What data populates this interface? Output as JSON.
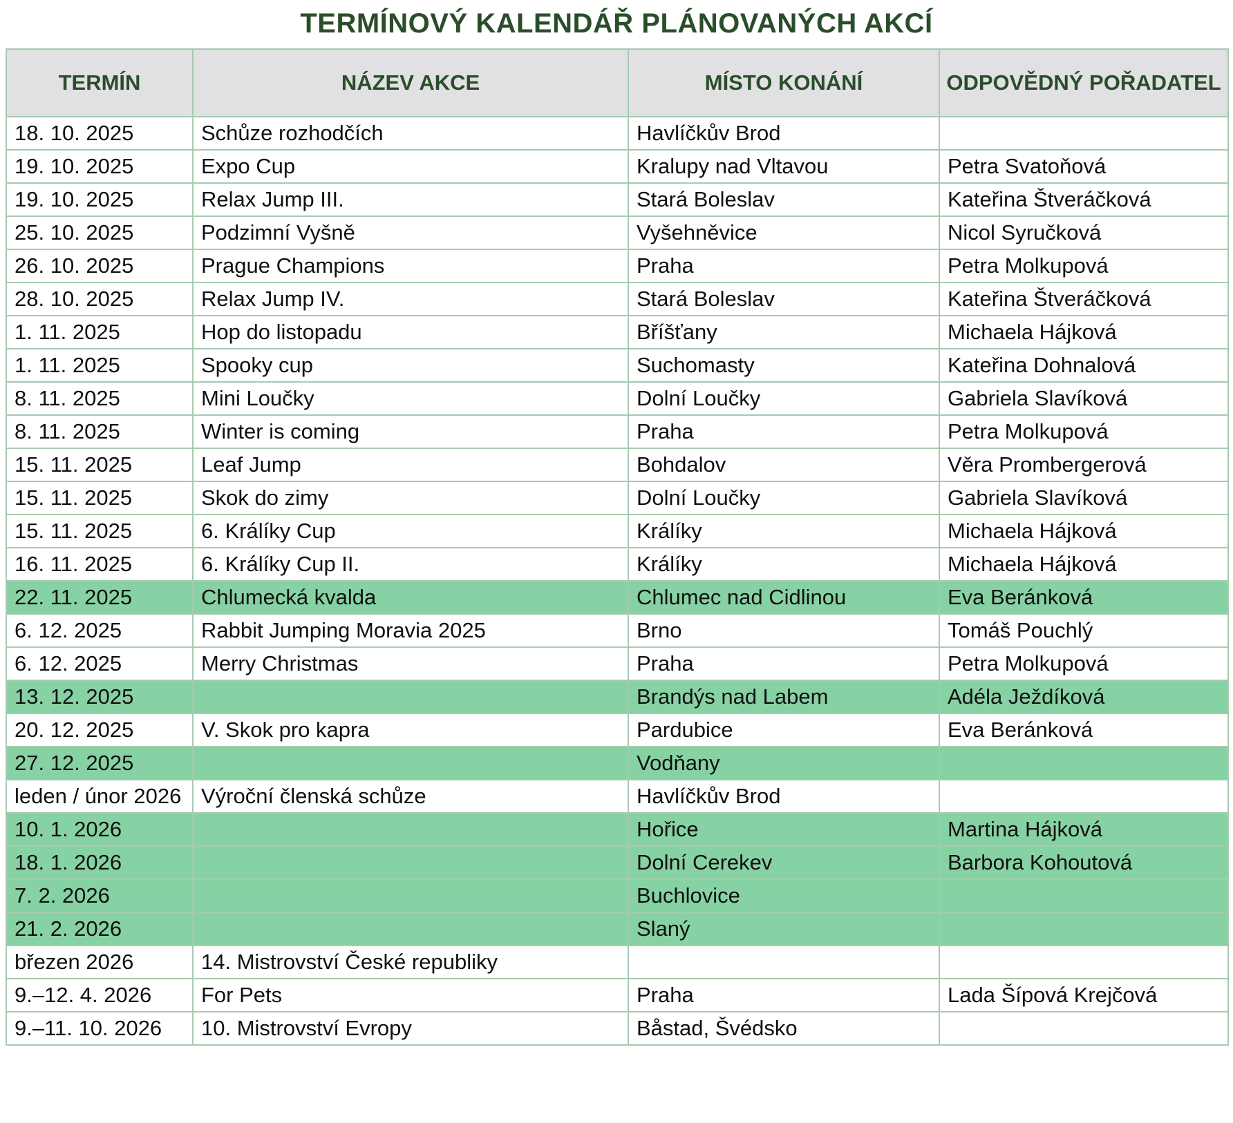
{
  "title": "TERMÍNOVÝ KALENDÁŘ PLÁNOVANÝCH AKCÍ",
  "colors": {
    "title_text": "#2a4d2a",
    "header_bg": "#e1e0e2",
    "header_text": "#2a4d2a",
    "row_highlight": "#87d2a4",
    "border": "#a6cbaf",
    "cell_text": "#101010"
  },
  "table": {
    "columns": [
      "TERMÍN",
      "NÁZEV AKCE",
      "MÍSTO KONÁNÍ",
      "ODPOVĚDNÝ POŘADATEL"
    ],
    "rows": [
      {
        "termin": "18. 10. 2025",
        "nazev": "Schůze rozhodčích",
        "misto": "Havlíčkův Brod",
        "poradatel": "",
        "highlight": false
      },
      {
        "termin": "19. 10. 2025",
        "nazev": "Expo Cup",
        "misto": "Kralupy nad Vltavou",
        "poradatel": "Petra Svatoňová",
        "highlight": false
      },
      {
        "termin": "19. 10. 2025",
        "nazev": "Relax Jump III.",
        "misto": "Stará Boleslav",
        "poradatel": "Kateřina Štveráčková",
        "highlight": false
      },
      {
        "termin": "25. 10. 2025",
        "nazev": "Podzimní Vyšně",
        "misto": "Vyšehněvice",
        "poradatel": "Nicol Syručková",
        "highlight": false
      },
      {
        "termin": "26. 10. 2025",
        "nazev": "Prague Champions",
        "misto": "Praha",
        "poradatel": "Petra Molkupová",
        "highlight": false
      },
      {
        "termin": "28. 10. 2025",
        "nazev": "Relax Jump IV.",
        "misto": "Stará Boleslav",
        "poradatel": "Kateřina Štveráčková",
        "highlight": false
      },
      {
        "termin": "1. 11. 2025",
        "nazev": "Hop do listopadu",
        "misto": "Bříšťany",
        "poradatel": "Michaela Hájková",
        "highlight": false
      },
      {
        "termin": "1. 11. 2025",
        "nazev": "Spooky cup",
        "misto": "Suchomasty",
        "poradatel": "Kateřina Dohnalová",
        "highlight": false
      },
      {
        "termin": "8. 11. 2025",
        "nazev": "Mini Loučky",
        "misto": "Dolní Loučky",
        "poradatel": "Gabriela Slavíková",
        "highlight": false
      },
      {
        "termin": "8. 11. 2025",
        "nazev": "Winter is coming",
        "misto": "Praha",
        "poradatel": "Petra Molkupová",
        "highlight": false
      },
      {
        "termin": "15. 11. 2025",
        "nazev": "Leaf Jump",
        "misto": "Bohdalov",
        "poradatel": "Věra Prombergerová",
        "highlight": false
      },
      {
        "termin": "15. 11. 2025",
        "nazev": "Skok do zimy",
        "misto": "Dolní Loučky",
        "poradatel": "Gabriela Slavíková",
        "highlight": false
      },
      {
        "termin": "15. 11. 2025",
        "nazev": "6. Králíky Cup",
        "misto": "Králíky",
        "poradatel": "Michaela Hájková",
        "highlight": false
      },
      {
        "termin": "16. 11. 2025",
        "nazev": "6. Králíky Cup II.",
        "misto": "Králíky",
        "poradatel": "Michaela Hájková",
        "highlight": false
      },
      {
        "termin": "22. 11. 2025",
        "nazev": "Chlumecká kvalda",
        "misto": "Chlumec nad Cidlinou",
        "poradatel": "Eva Beránková",
        "highlight": true
      },
      {
        "termin": "6. 12. 2025",
        "nazev": "Rabbit Jumping Moravia 2025",
        "misto": "Brno",
        "poradatel": "Tomáš Pouchlý",
        "highlight": false
      },
      {
        "termin": "6. 12. 2025",
        "nazev": "Merry Christmas",
        "misto": "Praha",
        "poradatel": "Petra Molkupová",
        "highlight": false
      },
      {
        "termin": "13. 12. 2025",
        "nazev": "",
        "misto": "Brandýs nad Labem",
        "poradatel": "Adéla Ježdíková",
        "highlight": true
      },
      {
        "termin": "20. 12. 2025",
        "nazev": "V. Skok pro kapra",
        "misto": "Pardubice",
        "poradatel": "Eva Beránková",
        "highlight": false
      },
      {
        "termin": "27. 12. 2025",
        "nazev": "",
        "misto": "Vodňany",
        "poradatel": "",
        "highlight": true
      },
      {
        "termin": "leden / únor 2026",
        "nazev": "Výroční členská schůze",
        "misto": "Havlíčkův Brod",
        "poradatel": "",
        "highlight": false
      },
      {
        "termin": "10. 1. 2026",
        "nazev": "",
        "misto": "Hořice",
        "poradatel": "Martina Hájková",
        "highlight": true
      },
      {
        "termin": "18. 1. 2026",
        "nazev": "",
        "misto": "Dolní Cerekev",
        "poradatel": "Barbora Kohoutová",
        "highlight": true
      },
      {
        "termin": "7. 2. 2026",
        "nazev": "",
        "misto": "Buchlovice",
        "poradatel": "",
        "highlight": true
      },
      {
        "termin": "21. 2. 2026",
        "nazev": "",
        "misto": "Slaný",
        "poradatel": "",
        "highlight": true
      },
      {
        "termin": "březen 2026",
        "nazev": "14. Mistrovství České republiky",
        "misto": "",
        "poradatel": "",
        "highlight": false
      },
      {
        "termin": "9.–12. 4. 2026",
        "nazev": "For Pets",
        "misto": "Praha",
        "poradatel": "Lada Šípová Krejčová",
        "highlight": false
      },
      {
        "termin": "9.–11. 10. 2026",
        "nazev": "10. Mistrovství Evropy",
        "misto": "Båstad, Švédsko",
        "poradatel": "",
        "highlight": false
      }
    ]
  }
}
